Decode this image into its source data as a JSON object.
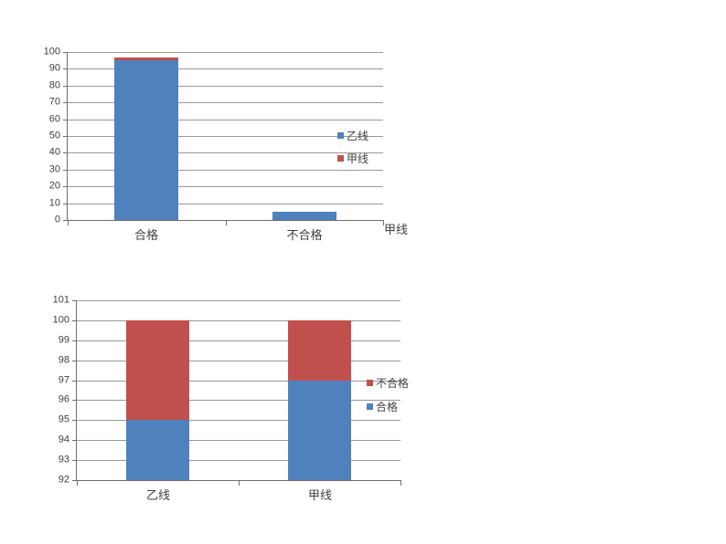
{
  "page": {
    "background": "#ffffff"
  },
  "colors": {
    "series_blue": "#4F81BD",
    "series_red": "#C0504D",
    "gridline": "#9a9a9a",
    "axis": "#6e6e6e",
    "text": "#3f3f3f"
  },
  "chart_data": [
    {
      "type": "bar",
      "subtype": "overlap",
      "title": "",
      "xlabel": "",
      "ylabel": "",
      "categories": [
        "合格",
        "不合格"
      ],
      "series": [
        {
          "name": "甲线",
          "color": "#C0504D",
          "values": [
            97,
            3
          ]
        },
        {
          "name": "乙线",
          "color": "#4F81BD",
          "values": [
            95,
            5
          ]
        }
      ],
      "legend": [
        {
          "label": "乙线",
          "color": "#4F81BD"
        },
        {
          "label": "甲线",
          "color": "#C0504D"
        }
      ],
      "legend_position": "right",
      "grid": true,
      "ylim": [
        0,
        100
      ],
      "ytick_step": 10,
      "ytick_labels": [
        "0",
        "10",
        "20",
        "30",
        "40",
        "50",
        "60",
        "70",
        "80",
        "90",
        "100"
      ],
      "floating_label": "甲线",
      "note": "series drawn fully overlapped; 甲线 (red) behind 乙线 (blue); red visible only where 97 > 95 on 合格"
    },
    {
      "type": "bar",
      "subtype": "stacked",
      "title": "",
      "xlabel": "",
      "ylabel": "",
      "categories": [
        "乙线",
        "甲线"
      ],
      "series": [
        {
          "name": "合格",
          "color": "#4F81BD",
          "values": [
            95,
            97
          ]
        },
        {
          "name": "不合格",
          "color": "#C0504D",
          "values": [
            5,
            3
          ]
        }
      ],
      "legend": [
        {
          "label": "不合格",
          "color": "#C0504D"
        },
        {
          "label": "合格",
          "color": "#4F81BD"
        }
      ],
      "legend_position": "right",
      "grid": true,
      "ylim": [
        92,
        101
      ],
      "ytick_step": 1,
      "ytick_labels": [
        "92",
        "93",
        "94",
        "95",
        "96",
        "97",
        "98",
        "99",
        "100",
        "101"
      ],
      "note": "stacked to 100: 乙线 95+5, 甲线 97+3; axis clipped at 92"
    }
  ]
}
